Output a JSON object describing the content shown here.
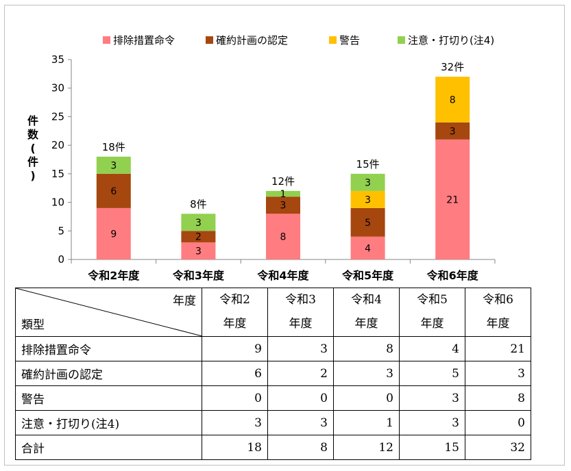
{
  "chart_data": {
    "type": "bar",
    "stacked": true,
    "categories": [
      "令和2年度",
      "令和3年度",
      "令和4年度",
      "令和5年度",
      "令和6年度"
    ],
    "series": [
      {
        "name": "排除措置命令",
        "color": "#ff7c80",
        "values": [
          9,
          3,
          8,
          4,
          21
        ]
      },
      {
        "name": "確約計画の認定",
        "color": "#a5470f",
        "values": [
          6,
          2,
          3,
          5,
          3
        ]
      },
      {
        "name": "警告",
        "color": "#ffc000",
        "values": [
          0,
          0,
          0,
          3,
          8
        ]
      },
      {
        "name": "注意・打切り(注4)",
        "color": "#92d050",
        "values": [
          3,
          3,
          1,
          3,
          0
        ]
      }
    ],
    "totals_labels": [
      "18件",
      "8件",
      "12件",
      "15件",
      "32件"
    ],
    "ylabel": "件数(件)",
    "ylim": [
      0,
      35
    ],
    "yticks": [
      "0",
      "5",
      "10",
      "15",
      "20",
      "25",
      "30",
      "35"
    ],
    "legend_position": "top",
    "grid": false
  },
  "table": {
    "corner_top": "年度",
    "corner_bottom": "類型",
    "headers": [
      [
        "令和2",
        "年度"
      ],
      [
        "令和3",
        "年度"
      ],
      [
        "令和4",
        "年度"
      ],
      [
        "令和5",
        "年度"
      ],
      [
        "令和6",
        "年度"
      ]
    ],
    "rows": [
      {
        "label": "排除措置命令",
        "values": [
          "9",
          "3",
          "8",
          "4",
          "21"
        ]
      },
      {
        "label": "確約計画の認定",
        "values": [
          "6",
          "2",
          "3",
          "5",
          "3"
        ]
      },
      {
        "label": "警告",
        "values": [
          "0",
          "0",
          "0",
          "3",
          "8"
        ]
      },
      {
        "label": "注意・打切り(注4)",
        "values": [
          "3",
          "3",
          "1",
          "3",
          "0"
        ]
      },
      {
        "label": "合計",
        "values": [
          "18",
          "8",
          "12",
          "15",
          "32"
        ]
      }
    ]
  }
}
